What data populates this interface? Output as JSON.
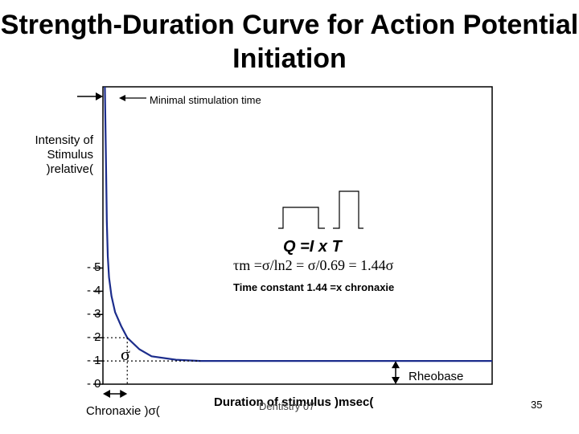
{
  "title": "Strength-Duration Curve for Action Potential Initiation",
  "chart_data": {
    "type": "line",
    "title": "Strength-Duration Curve for Action Potential Initiation",
    "xlabel": "Duration of stimulus )msec(",
    "ylabel": "Intensity of Stimulus )relative(",
    "yticks": [
      "- 0",
      "- 1",
      "- 2",
      "- 3",
      "- 4",
      "- 5"
    ],
    "ytick_values": [
      0,
      1,
      2,
      3,
      4,
      5
    ],
    "ylim": [
      0,
      12.8
    ],
    "xlim": [
      0,
      16
    ],
    "rheobase": 1,
    "chronaxie": 1,
    "series": [
      {
        "values": [
          [
            0.08,
            12.8
          ],
          [
            0.12,
            10
          ],
          [
            0.16,
            7
          ],
          [
            0.2,
            5.5
          ],
          [
            0.25,
            4.6
          ],
          [
            0.35,
            3.8
          ],
          [
            0.5,
            3.1
          ],
          [
            0.75,
            2.5
          ],
          [
            1.0,
            2.0
          ],
          [
            1.5,
            1.5
          ],
          [
            2.0,
            1.2
          ],
          [
            3.0,
            1.05
          ],
          [
            4.0,
            1.0
          ],
          [
            16,
            1.0
          ]
        ]
      }
    ],
    "annotations": {
      "minimal_stimulation": "Minimal stimulation time",
      "rheobase": "Rheobase",
      "chronaxie": "Chronaxie )σ(",
      "sigma": "σ",
      "charge_formula": "Q =I x T",
      "tau_formula": "τm =σ/ln2 = σ/0.69 = 1.44σ",
      "tau_note": "Time constant 1.44 =x chronaxie",
      "stray_text": "Dentistry 07"
    }
  },
  "page_number": "35",
  "colors": {
    "curve": "#1c2d8c",
    "rheobase_line": "#1c2d8c",
    "axis": "#000000"
  }
}
